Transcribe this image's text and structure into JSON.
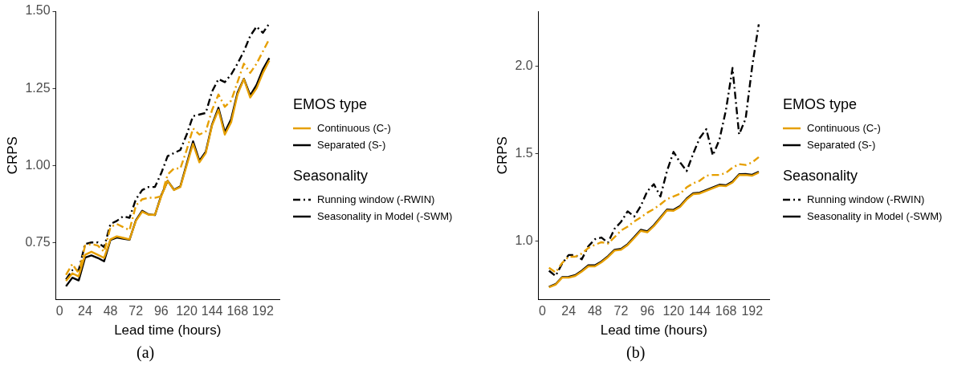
{
  "chart_data": [
    {
      "type": "line",
      "xlabel": "Lead time (hours)",
      "ylabel": "CRPS",
      "legend_title": "EMOS type",
      "grid": false,
      "marker": "none",
      "annotations": [
        "Continuous (C-)",
        "Separated (S-)",
        "Seasonality",
        "Running window (-RWIN)",
        "Seasonality in Model (-SWM)",
        "(a)"
      ],
      "x": [
        6,
        12,
        18,
        24,
        30,
        36,
        42,
        48,
        54,
        60,
        66,
        72,
        78,
        84,
        90,
        96,
        102,
        108,
        114,
        120,
        126,
        132,
        138,
        144,
        150,
        156,
        162,
        168,
        174,
        180,
        186,
        192,
        198
      ],
      "xlim": [
        -3.6,
        207.6
      ],
      "xticks": [
        0,
        24,
        48,
        72,
        96,
        120,
        144,
        168,
        192
      ],
      "ylim": [
        0.565,
        1.5
      ],
      "yticks": [
        {
          "value": 0.75,
          "label": "0.75"
        },
        {
          "value": 1,
          "label": "1.00"
        },
        {
          "value": 1.25,
          "label": "1.25"
        },
        {
          "value": 1.5,
          "label": "1.50"
        }
      ],
      "series": [
        {
          "color": "#e69f00",
          "line_style": "dashed",
          "values": [
            0.645,
            0.68,
            0.65,
            0.74,
            0.745,
            0.74,
            0.72,
            0.8,
            0.81,
            0.8,
            0.79,
            0.87,
            0.89,
            0.895,
            0.895,
            0.9,
            0.97,
            0.99,
            0.99,
            1.05,
            1.12,
            1.1,
            1.11,
            1.18,
            1.23,
            1.19,
            1.21,
            1.27,
            1.33,
            1.3,
            1.33,
            1.37,
            1.41
          ]
        },
        {
          "color": "#e69f00",
          "line_style": "solid",
          "values": [
            0.625,
            0.65,
            0.64,
            0.71,
            0.72,
            0.71,
            0.7,
            0.76,
            0.77,
            0.765,
            0.76,
            0.82,
            0.85,
            0.84,
            0.84,
            0.9,
            0.95,
            0.92,
            0.93,
            1.0,
            1.07,
            1.01,
            1.04,
            1.13,
            1.18,
            1.1,
            1.14,
            1.23,
            1.28,
            1.22,
            1.25,
            1.3,
            1.34
          ]
        },
        {
          "color": "#000000",
          "line_style": "dashed",
          "values": [
            0.63,
            0.66,
            0.66,
            0.745,
            0.75,
            0.75,
            0.735,
            0.81,
            0.82,
            0.835,
            0.83,
            0.89,
            0.92,
            0.93,
            0.93,
            0.975,
            1.03,
            1.04,
            1.05,
            1.1,
            1.16,
            1.165,
            1.17,
            1.24,
            1.28,
            1.27,
            1.295,
            1.33,
            1.37,
            1.42,
            1.45,
            1.43,
            1.46
          ]
        },
        {
          "color": "#000000",
          "line_style": "solid",
          "values": [
            0.608,
            0.636,
            0.627,
            0.701,
            0.708,
            0.7,
            0.689,
            0.758,
            0.766,
            0.762,
            0.759,
            0.822,
            0.853,
            0.841,
            0.839,
            0.903,
            0.95,
            0.921,
            0.932,
            1.005,
            1.078,
            1.015,
            1.044,
            1.133,
            1.187,
            1.108,
            1.15,
            1.236,
            1.281,
            1.227,
            1.261,
            1.312,
            1.348
          ]
        }
      ]
    },
    {
      "type": "line",
      "xlabel": "Lead time (hours)",
      "ylabel": "CRPS",
      "legend_title": "EMOS type",
      "grid": false,
      "marker": "none",
      "annotations": [
        "Continuous (C-)",
        "Separated (S-)",
        "Seasonality",
        "Running window (-RWIN)",
        "Seasonality in Model (-SWM)",
        "(b)"
      ],
      "x": [
        6,
        12,
        18,
        24,
        30,
        36,
        42,
        48,
        54,
        60,
        66,
        72,
        78,
        84,
        90,
        96,
        102,
        108,
        114,
        120,
        126,
        132,
        138,
        144,
        150,
        156,
        162,
        168,
        174,
        180,
        186,
        192,
        198
      ],
      "xlim": [
        -3.6,
        207.6
      ],
      "xticks": [
        0,
        24,
        48,
        72,
        96,
        120,
        144,
        168,
        192
      ],
      "ylim": [
        0.665,
        2.315
      ],
      "yticks": [
        {
          "value": 1,
          "label": "1.0"
        },
        {
          "value": 1.5,
          "label": "1.5"
        },
        {
          "value": 2,
          "label": "2.0"
        }
      ],
      "series": [
        {
          "color": "#e69f00",
          "line_style": "dashed",
          "values": [
            0.847,
            0.82,
            0.874,
            0.91,
            0.91,
            0.928,
            0.96,
            0.978,
            0.993,
            0.985,
            1.022,
            1.06,
            1.082,
            1.112,
            1.135,
            1.162,
            1.183,
            1.21,
            1.24,
            1.255,
            1.27,
            1.307,
            1.33,
            1.345,
            1.374,
            1.378,
            1.378,
            1.39,
            1.42,
            1.44,
            1.435,
            1.45,
            1.48
          ]
        },
        {
          "color": "#e69f00",
          "line_style": "solid",
          "values": [
            0.735,
            0.75,
            0.79,
            0.79,
            0.8,
            0.825,
            0.855,
            0.855,
            0.878,
            0.908,
            0.945,
            0.95,
            0.977,
            1.017,
            1.058,
            1.05,
            1.085,
            1.13,
            1.175,
            1.173,
            1.195,
            1.238,
            1.268,
            1.272,
            1.287,
            1.302,
            1.317,
            1.314,
            1.335,
            1.377,
            1.378,
            1.374,
            1.392
          ]
        },
        {
          "color": "#000000",
          "line_style": "dashed",
          "values": [
            0.83,
            0.8,
            0.87,
            0.92,
            0.92,
            0.895,
            0.97,
            1.01,
            1.02,
            0.99,
            1.07,
            1.11,
            1.17,
            1.14,
            1.2,
            1.285,
            1.325,
            1.255,
            1.4,
            1.51,
            1.45,
            1.4,
            1.5,
            1.59,
            1.64,
            1.49,
            1.58,
            1.75,
            1.99,
            1.61,
            1.7,
            2.0,
            2.24
          ]
        },
        {
          "color": "#000000",
          "line_style": "solid",
          "values": [
            0.738,
            0.753,
            0.793,
            0.795,
            0.805,
            0.83,
            0.861,
            0.861,
            0.883,
            0.913,
            0.95,
            0.955,
            0.982,
            1.022,
            1.064,
            1.055,
            1.09,
            1.135,
            1.18,
            1.178,
            1.2,
            1.243,
            1.273,
            1.277,
            1.292,
            1.307,
            1.322,
            1.319,
            1.34,
            1.382,
            1.383,
            1.379,
            1.397
          ]
        }
      ]
    }
  ]
}
